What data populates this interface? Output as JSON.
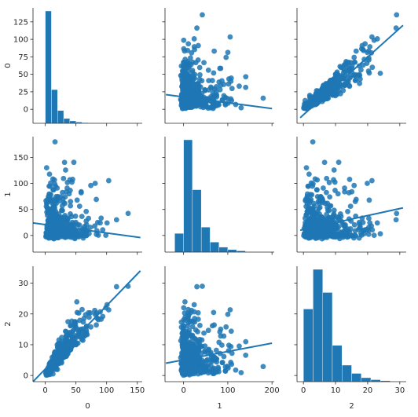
{
  "chart_data": {
    "type": "scatter",
    "variables": [
      "0",
      "1",
      "2"
    ],
    "color": "#1f77b4",
    "grid": false,
    "legend": "none",
    "panels": [
      {
        "row": 0,
        "col": 0,
        "kind": "hist",
        "var": "0",
        "bins": [
          [
            0,
            10,
            140
          ],
          [
            10,
            20,
            42
          ],
          [
            20,
            30,
            16
          ],
          [
            30,
            40,
            6
          ],
          [
            40,
            50,
            3
          ],
          [
            50,
            60,
            1.5
          ],
          [
            60,
            70,
            0.8
          ],
          [
            70,
            80,
            0.4
          ],
          [
            80,
            90,
            0.2
          ]
        ]
      },
      {
        "row": 0,
        "col": 1,
        "kind": "scatter",
        "x": "1",
        "y": "0",
        "fit": [
          [
            -40,
            21
          ],
          [
            200,
            1
          ]
        ]
      },
      {
        "row": 0,
        "col": 2,
        "kind": "scatter",
        "x": "2",
        "y": "0",
        "fit": [
          [
            -1,
            -12
          ],
          [
            31,
            120
          ]
        ]
      },
      {
        "row": 1,
        "col": 0,
        "kind": "scatter",
        "x": "0",
        "y": "1",
        "fit": [
          [
            -20,
            24
          ],
          [
            155,
            -4
          ]
        ]
      },
      {
        "row": 1,
        "col": 1,
        "kind": "hist",
        "var": "1",
        "bins": [
          [
            -20,
            0,
            15
          ],
          [
            0,
            20,
            90
          ],
          [
            20,
            40,
            50
          ],
          [
            40,
            60,
            20
          ],
          [
            60,
            80,
            8
          ],
          [
            80,
            100,
            4
          ],
          [
            100,
            120,
            2
          ],
          [
            120,
            140,
            1
          ]
        ]
      },
      {
        "row": 1,
        "col": 2,
        "kind": "scatter",
        "x": "2",
        "y": "1",
        "fit": [
          [
            -1,
            10
          ],
          [
            31,
            53
          ]
        ]
      },
      {
        "row": 2,
        "col": 0,
        "kind": "scatter",
        "x": "0",
        "y": "2",
        "fit": [
          [
            -20,
            -2
          ],
          [
            155,
            34
          ]
        ]
      },
      {
        "row": 2,
        "col": 1,
        "kind": "scatter",
        "x": "1",
        "y": "2",
        "fit": [
          [
            -40,
            4
          ],
          [
            200,
            10.5
          ]
        ]
      },
      {
        "row": 2,
        "col": 2,
        "kind": "hist",
        "var": "2",
        "bins": [
          [
            0,
            3,
            22
          ],
          [
            3,
            6,
            34
          ],
          [
            6,
            9,
            27
          ],
          [
            9,
            12,
            11
          ],
          [
            12,
            15,
            5
          ],
          [
            15,
            18,
            2.5
          ],
          [
            18,
            21,
            1.2
          ],
          [
            21,
            24,
            0.6
          ],
          [
            24,
            27,
            0.3
          ]
        ]
      }
    ],
    "axes": {
      "x": [
        {
          "var": "0",
          "lim": [
            -20,
            158
          ],
          "ticks": [
            0,
            50,
            100,
            150
          ],
          "tick_labels": [
            "0",
            "50",
            "100",
            "150"
          ],
          "label": "0"
        },
        {
          "var": "1",
          "lim": [
            -42,
            205
          ],
          "ticks": [
            0,
            100,
            200
          ],
          "tick_labels": [
            "0",
            "100",
            "200"
          ],
          "label": "1"
        },
        {
          "var": "2",
          "lim": [
            -2,
            32
          ],
          "ticks": [
            0,
            10,
            20,
            30
          ],
          "tick_labels": [
            "0",
            "10",
            "20",
            "30"
          ],
          "label": "2"
        }
      ],
      "y": [
        {
          "var": "0",
          "lim": [
            -20,
            145
          ],
          "ticks": [
            0,
            25,
            50,
            75,
            100,
            125
          ],
          "tick_labels": [
            "0",
            "25",
            "50",
            "75",
            "100",
            "125"
          ],
          "label": "0"
        },
        {
          "var": "1",
          "lim": [
            -32,
            190
          ],
          "ticks": [
            0,
            50,
            100,
            150
          ],
          "tick_labels": [
            "0",
            "50",
            "100",
            "150"
          ],
          "label": "1"
        },
        {
          "var": "2",
          "lim": [
            -2,
            35.5
          ],
          "ticks": [
            0,
            10,
            20,
            30
          ],
          "tick_labels": [
            "0",
            "10",
            "20",
            "30"
          ],
          "label": "2"
        }
      ]
    }
  }
}
